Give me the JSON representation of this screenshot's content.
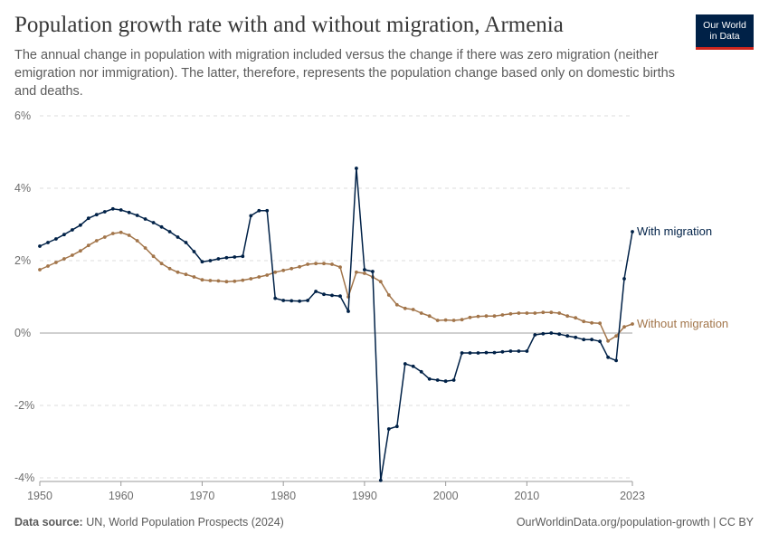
{
  "title": "Population growth rate with and without migration, Armenia",
  "subtitle": "The annual change in population with migration included versus the change if there was zero migration (neither emigration nor immigration). The latter, therefore, represents the population change based only on domestic births and deaths.",
  "logo": {
    "line1": "Our World",
    "line2": "in Data"
  },
  "footer": {
    "source_label": "Data source:",
    "source_text": "UN, World Population Prospects (2024)",
    "url": "OurWorldinData.org/population-growth | CC BY"
  },
  "chart_data": {
    "type": "line",
    "title": "Population growth rate with and without migration, Armenia",
    "x_ticks": [
      "1950",
      "1960",
      "1970",
      "1980",
      "1990",
      "2000",
      "2010",
      "2023"
    ],
    "y_ticks": [
      "-4%",
      "-2%",
      "0%",
      "2%",
      "4%",
      "6%"
    ],
    "xlim": [
      1950,
      2023
    ],
    "ylim": [
      -4,
      6
    ],
    "grid": true,
    "legend": "inline-right",
    "series": [
      {
        "name": "With migration",
        "color": "#002147",
        "x": [
          1950,
          1951,
          1952,
          1953,
          1954,
          1955,
          1956,
          1957,
          1958,
          1959,
          1960,
          1961,
          1962,
          1963,
          1964,
          1965,
          1966,
          1967,
          1968,
          1969,
          1970,
          1971,
          1972,
          1973,
          1974,
          1975,
          1976,
          1977,
          1978,
          1979,
          1980,
          1981,
          1982,
          1983,
          1984,
          1985,
          1986,
          1987,
          1988,
          1989,
          1990,
          1991,
          1992,
          1993,
          1994,
          1995,
          1996,
          1997,
          1998,
          1999,
          2000,
          2001,
          2002,
          2003,
          2004,
          2005,
          2006,
          2007,
          2008,
          2009,
          2010,
          2011,
          2012,
          2013,
          2014,
          2015,
          2016,
          2017,
          2018,
          2019,
          2020,
          2021,
          2022,
          2023
        ],
        "values": [
          2.4,
          2.5,
          2.6,
          2.72,
          2.85,
          2.98,
          3.17,
          3.27,
          3.35,
          3.43,
          3.4,
          3.33,
          3.25,
          3.15,
          3.05,
          2.93,
          2.8,
          2.65,
          2.5,
          2.25,
          1.97,
          2.0,
          2.05,
          2.08,
          2.1,
          2.12,
          3.24,
          3.38,
          3.38,
          0.96,
          0.9,
          0.89,
          0.88,
          0.9,
          1.15,
          1.07,
          1.04,
          1.02,
          0.6,
          4.55,
          1.75,
          1.7,
          -4.07,
          -2.65,
          -2.58,
          -0.85,
          -0.92,
          -1.07,
          -1.27,
          -1.3,
          -1.33,
          -1.3,
          -0.55,
          -0.55,
          -0.55,
          -0.54,
          -0.54,
          -0.52,
          -0.5,
          -0.5,
          -0.5,
          -0.05,
          -0.02,
          0.0,
          -0.03,
          -0.08,
          -0.12,
          -0.18,
          -0.18,
          -0.23,
          -0.67,
          -0.76,
          1.5,
          2.8
        ]
      },
      {
        "name": "Without migration",
        "color": "#a2754a",
        "x": [
          1950,
          1951,
          1952,
          1953,
          1954,
          1955,
          1956,
          1957,
          1958,
          1959,
          1960,
          1961,
          1962,
          1963,
          1964,
          1965,
          1966,
          1967,
          1968,
          1969,
          1970,
          1971,
          1972,
          1973,
          1974,
          1975,
          1976,
          1977,
          1978,
          1979,
          1980,
          1981,
          1982,
          1983,
          1984,
          1985,
          1986,
          1987,
          1988,
          1989,
          1990,
          1991,
          1992,
          1993,
          1994,
          1995,
          1996,
          1997,
          1998,
          1999,
          2000,
          2001,
          2002,
          2003,
          2004,
          2005,
          2006,
          2007,
          2008,
          2009,
          2010,
          2011,
          2012,
          2013,
          2014,
          2015,
          2016,
          2017,
          2018,
          2019,
          2020,
          2021,
          2022,
          2023
        ],
        "values": [
          1.75,
          1.85,
          1.95,
          2.05,
          2.15,
          2.27,
          2.42,
          2.55,
          2.65,
          2.75,
          2.78,
          2.7,
          2.55,
          2.35,
          2.12,
          1.92,
          1.78,
          1.68,
          1.62,
          1.55,
          1.47,
          1.45,
          1.44,
          1.42,
          1.43,
          1.46,
          1.5,
          1.55,
          1.6,
          1.68,
          1.73,
          1.78,
          1.83,
          1.9,
          1.92,
          1.92,
          1.9,
          1.82,
          1.0,
          1.68,
          1.65,
          1.55,
          1.42,
          1.05,
          0.78,
          0.68,
          0.65,
          0.55,
          0.47,
          0.35,
          0.36,
          0.35,
          0.37,
          0.43,
          0.46,
          0.47,
          0.47,
          0.5,
          0.53,
          0.55,
          0.55,
          0.55,
          0.57,
          0.57,
          0.55,
          0.47,
          0.42,
          0.32,
          0.28,
          0.27,
          -0.22,
          -0.08,
          0.17,
          0.25
        ]
      }
    ]
  }
}
